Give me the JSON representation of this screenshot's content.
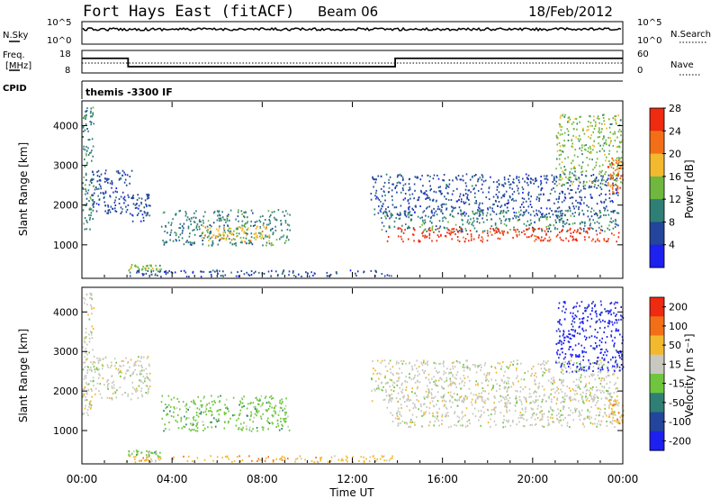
{
  "header": {
    "station": "Fort Hays East (fitACF)",
    "beam": "Beam 06",
    "date": "18/Feb/2012"
  },
  "status_panels": {
    "nsky_label": "N.Sky",
    "nsearch_label": "N.Search",
    "nsky_tick_top": "10^5",
    "nsky_tick_bottom": "10^0",
    "nsearch_tick_top": "10^5",
    "nsearch_tick_bottom": "10^0",
    "freq_label_line1": "Freq.",
    "freq_label_line2": "[MHz]",
    "freq_tick_top": "18",
    "freq_tick_bottom": "8",
    "nave_label": "Nave",
    "nave_tick_top": "60",
    "nave_tick_bottom": "0",
    "cpid_label": "CPID",
    "cpid_value": "themis -3300 IF",
    "freq_steps_hours": [
      0.0,
      2.05,
      13.9,
      24.0
    ],
    "freq_levels_mhz": [
      14.5,
      10.8,
      14.5
    ]
  },
  "chart_data": [
    {
      "type": "heatmap",
      "name": "Power",
      "ylabel": "Slant Range [km]",
      "ylim": [
        180,
        4600
      ],
      "yticks": [
        "1000",
        "2000",
        "3000",
        "4000"
      ],
      "xlim": [
        0,
        24
      ],
      "colorbar_label": "Power [dB]",
      "colorbar_ticks": [
        "4",
        "8",
        "12",
        "16",
        "20",
        "24",
        "28"
      ],
      "colors": [
        "#1d20ef",
        "#23459b",
        "#2f7f74",
        "#6fb73e",
        "#f3b92e",
        "#f36f17",
        "#ee2a10"
      ],
      "regions": [
        {
          "t0": 0.0,
          "t1": 0.5,
          "r0": 1400,
          "r1": 4500,
          "level": 2
        },
        {
          "t0": 0.4,
          "t1": 2.2,
          "r0": 1800,
          "r1": 2900,
          "level": 1
        },
        {
          "t0": 2.2,
          "t1": 3.0,
          "r0": 1600,
          "r1": 2300,
          "level": 1
        },
        {
          "t0": 3.5,
          "t1": 9.2,
          "r0": 1000,
          "r1": 1900,
          "level": 2
        },
        {
          "t0": 5.3,
          "t1": 8.3,
          "r0": 1100,
          "r1": 1500,
          "level": 4
        },
        {
          "t0": 2.0,
          "t1": 3.5,
          "r0": 350,
          "r1": 520,
          "level": 3
        },
        {
          "t0": 1.9,
          "t1": 13.8,
          "r0": 220,
          "r1": 380,
          "level": 1
        },
        {
          "t0": 12.8,
          "t1": 23.8,
          "r0": 1750,
          "r1": 2800,
          "level": 1
        },
        {
          "t0": 13.2,
          "t1": 23.8,
          "r0": 1350,
          "r1": 1900,
          "level": 2
        },
        {
          "t0": 13.5,
          "t1": 23.8,
          "r0": 1100,
          "r1": 1450,
          "level": 6
        },
        {
          "t0": 21.0,
          "t1": 24.0,
          "r0": 2500,
          "r1": 4300,
          "level": 3
        },
        {
          "t0": 23.3,
          "t1": 24.0,
          "r0": 2300,
          "r1": 3200,
          "level": 5
        }
      ]
    },
    {
      "type": "heatmap",
      "name": "Velocity",
      "ylabel": "Slant Range [km]",
      "ylim": [
        180,
        4600
      ],
      "yticks": [
        "1000",
        "2000",
        "3000",
        "4000"
      ],
      "xlim": [
        0,
        24
      ],
      "xticks": [
        "00:00",
        "04:00",
        "08:00",
        "12:00",
        "16:00",
        "20:00",
        "00:00"
      ],
      "xlabel": "Time UT",
      "colorbar_label": "Velocity [m s⁻¹]",
      "colorbar_ticks": [
        "200",
        "100",
        "50",
        "15",
        "-15",
        "-50",
        "-100",
        "-200"
      ],
      "colors": [
        "#1d20ef",
        "#23459b",
        "#2f7f74",
        "#6fc63e",
        "#c8c8c0",
        "#f3b92e",
        "#f36f17",
        "#ee2a10"
      ],
      "regions": [
        {
          "t0": 0.0,
          "t1": 0.5,
          "r0": 1400,
          "r1": 4500,
          "level": 4
        },
        {
          "t0": 0.4,
          "t1": 3.0,
          "r0": 1800,
          "r1": 2900,
          "level": 4
        },
        {
          "t0": 3.5,
          "t1": 9.2,
          "r0": 1000,
          "r1": 1900,
          "level": 3
        },
        {
          "t0": 2.0,
          "t1": 3.5,
          "r0": 350,
          "r1": 520,
          "level": 3
        },
        {
          "t0": 1.9,
          "t1": 13.8,
          "r0": 220,
          "r1": 380,
          "level": 5
        },
        {
          "t0": 12.8,
          "t1": 23.8,
          "r0": 1750,
          "r1": 2800,
          "level": 4
        },
        {
          "t0": 13.5,
          "t1": 23.8,
          "r0": 1100,
          "r1": 1900,
          "level": 4
        },
        {
          "t0": 21.0,
          "t1": 24.0,
          "r0": 2500,
          "r1": 4300,
          "level": 0
        },
        {
          "t0": 23.3,
          "t1": 24.0,
          "r0": 1200,
          "r1": 1800,
          "level": 5
        }
      ]
    }
  ]
}
